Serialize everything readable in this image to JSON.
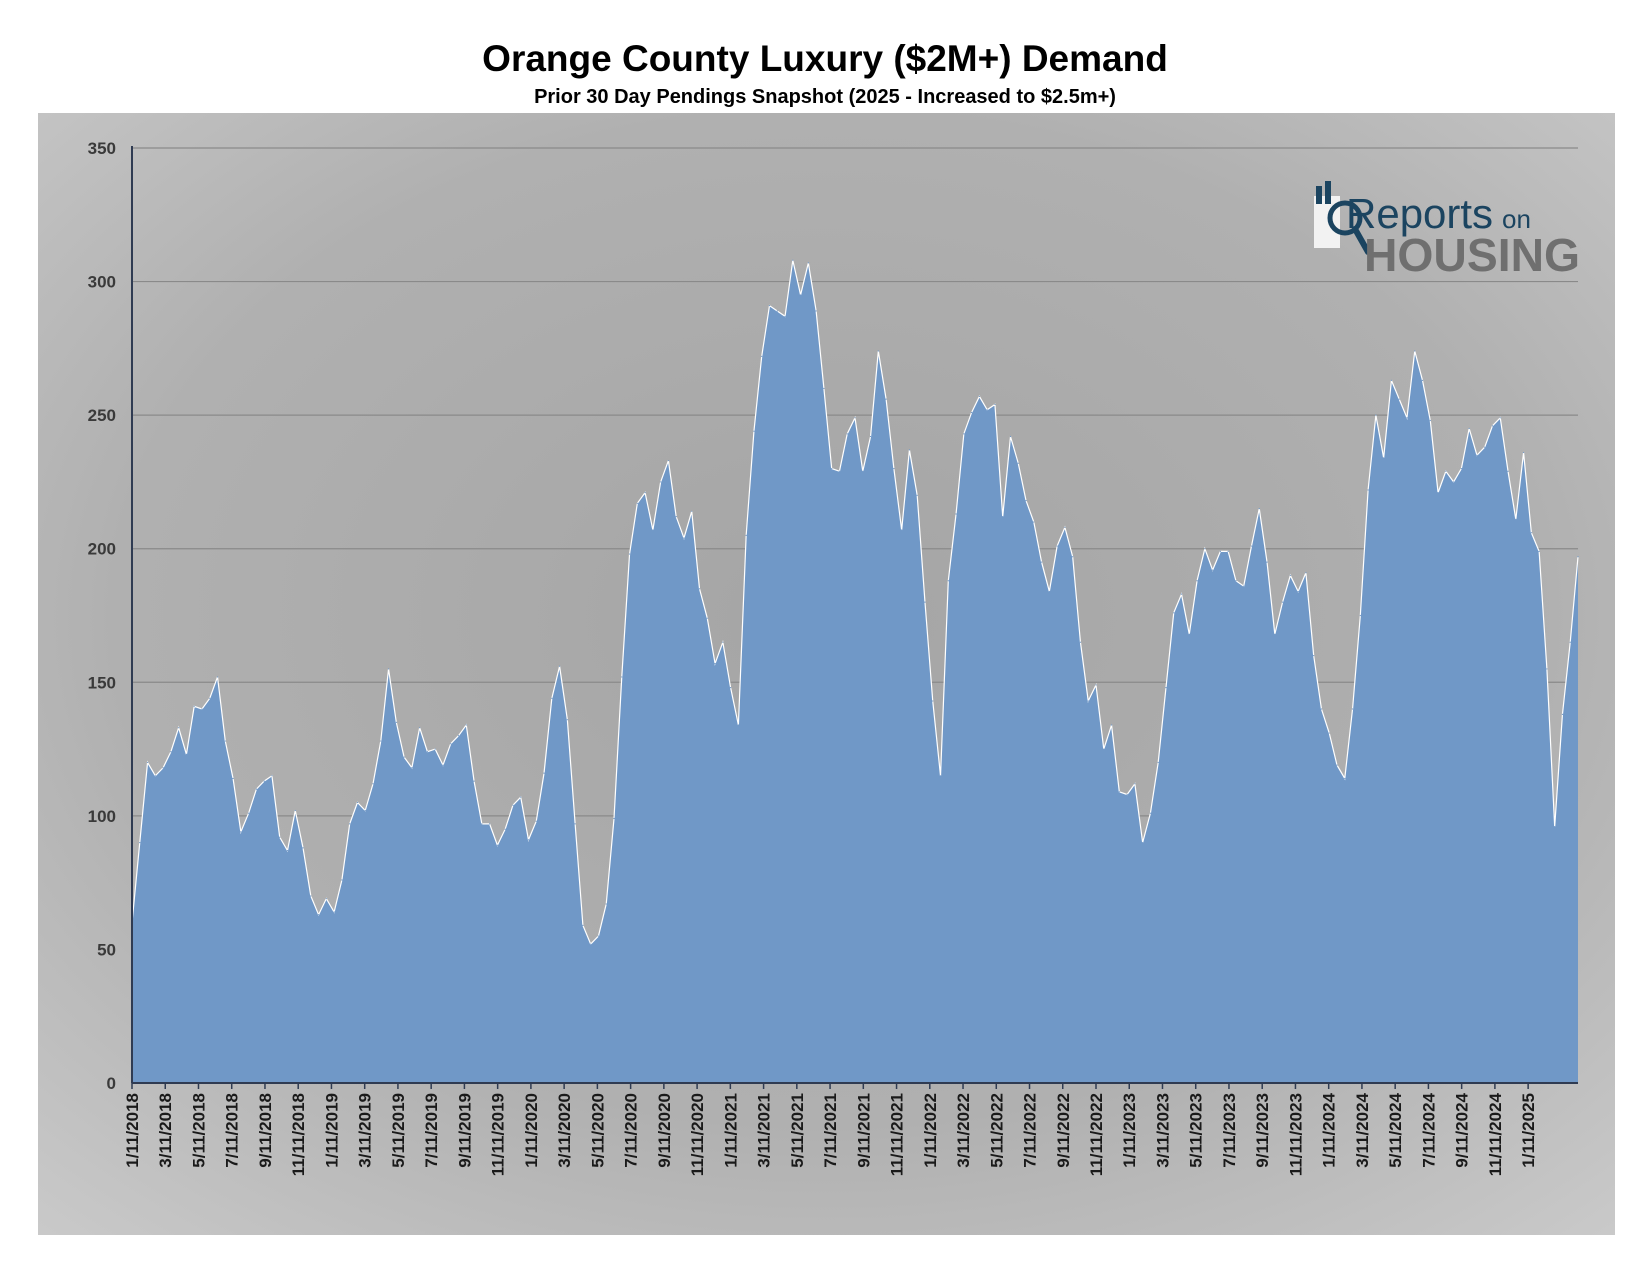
{
  "chart_data": {
    "type": "area",
    "title": "Orange County Luxury ($2M+) Demand",
    "subtitle": "Prior 30 Day Pendings Snapshot (2025 - Increased to $2.5m+)",
    "xlabel": "",
    "ylabel": "",
    "ylim": [
      0,
      350
    ],
    "yticks": [
      0,
      50,
      100,
      150,
      200,
      250,
      300,
      350
    ],
    "grid": true,
    "legend": "none",
    "x_start": "1/11/2018",
    "x_end": "4/11/2025",
    "x_tick_labels": [
      "1/11/2018",
      "3/11/2018",
      "5/11/2018",
      "7/11/2018",
      "9/11/2018",
      "11/11/2018",
      "1/11/2019",
      "3/11/2019",
      "5/11/2019",
      "7/11/2019",
      "9/11/2019",
      "11/11/2019",
      "1/11/2020",
      "3/11/2020",
      "5/11/2020",
      "7/11/2020",
      "9/11/2020",
      "11/11/2020",
      "1/11/2021",
      "3/11/2021",
      "5/11/2021",
      "7/11/2021",
      "9/11/2021",
      "11/11/2021",
      "1/11/2022",
      "3/11/2022",
      "5/11/2022",
      "7/11/2022",
      "9/11/2022",
      "11/11/2022",
      "1/11/2023",
      "3/11/2023",
      "5/11/2023",
      "7/11/2023",
      "9/11/2023",
      "11/11/2023",
      "1/11/2024",
      "3/11/2024",
      "5/11/2024",
      "7/11/2024",
      "9/11/2024",
      "11/11/2024",
      "1/11/2025"
    ],
    "series": [
      {
        "values": [
          60,
          90,
          120,
          115,
          118,
          124,
          133,
          123,
          141,
          140,
          144,
          152,
          128,
          114,
          94,
          101,
          110,
          113,
          115,
          92,
          87,
          102,
          88,
          70,
          63,
          69,
          64,
          76,
          97,
          105,
          102,
          112,
          128,
          155,
          135,
          122,
          118,
          133,
          124,
          125,
          119,
          127,
          130,
          134,
          113,
          97,
          97,
          89,
          95,
          104,
          107,
          91,
          98,
          116,
          144,
          156,
          136,
          97,
          59,
          52,
          55,
          67,
          99,
          152,
          198,
          217,
          221,
          207,
          225,
          233,
          212,
          204,
          214,
          185,
          174,
          157,
          165,
          148,
          134,
          205,
          244,
          272,
          291,
          289,
          287,
          308,
          295,
          307,
          289,
          260,
          230,
          229,
          243,
          249,
          229,
          242,
          274,
          256,
          230,
          207,
          237,
          220,
          180,
          143,
          115,
          188,
          213,
          243,
          251,
          257,
          252,
          254,
          212,
          242,
          232,
          218,
          210,
          195,
          184,
          201,
          208,
          197,
          165,
          143,
          149,
          125,
          134,
          109,
          108,
          112,
          90,
          101,
          120,
          148,
          176,
          183,
          168,
          188,
          200,
          192,
          199,
          199,
          188,
          186,
          201,
          215,
          195,
          168,
          180,
          190,
          184,
          191,
          160,
          140,
          131,
          119,
          114,
          140,
          175,
          222,
          250,
          234,
          263,
          256,
          249,
          274,
          263,
          248,
          221,
          229,
          225,
          230,
          245,
          235,
          238,
          246,
          249,
          229,
          211,
          236,
          206,
          199,
          155,
          96,
          138,
          165,
          197
        ]
      }
    ]
  },
  "logo": {
    "line1": "Reports",
    "line1_suffix": "on",
    "line2": "HOUSING",
    "icon": "magnifier-house-icon"
  },
  "colors": {
    "area_fill": "#7098c7",
    "area_stroke": "#ffffff",
    "plot_bg_center": "#a9a9a9",
    "plot_bg_edge": "#c6c6c6",
    "logo_blue": "#1b4460",
    "logo_gray": "#6f6f6f"
  }
}
